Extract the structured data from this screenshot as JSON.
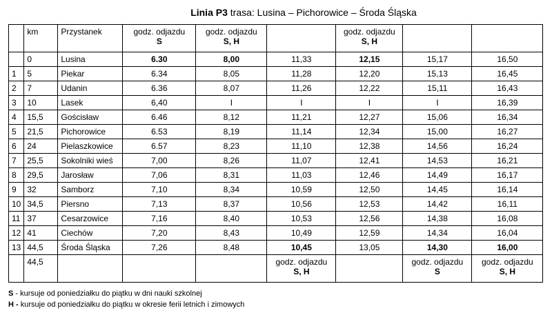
{
  "header": {
    "title_bold": "Linia P3",
    "title_rest": " trasa: Lusina – Pichorowice – Środa Śląska"
  },
  "table": {
    "header": [
      null,
      "km",
      "Przystanek",
      {
        "line1": "godz. odjazdu",
        "line2": "S"
      },
      {
        "line1": "godz. odjazdu",
        "line2": "S, H"
      },
      null,
      {
        "line1": "godz. odjazdu",
        "line2": "S, H"
      },
      null,
      null
    ],
    "rows": [
      [
        null,
        "0",
        "Lusina",
        "6.30",
        "8,00",
        "11,33",
        "12,15",
        "15,17",
        "16,50"
      ],
      [
        "1",
        "5",
        "Piekar",
        "6.34",
        "8,05",
        "11,28",
        "12,20",
        "15,13",
        "16,45"
      ],
      [
        "2",
        "7",
        "Udanin",
        "6.36",
        "8,07",
        "11,26",
        "12,22",
        "15,11",
        "16,43"
      ],
      [
        "3",
        "10",
        "Lasek",
        "6,40",
        "I",
        "I",
        "I",
        "I",
        "16,39"
      ],
      [
        "4",
        "15,5",
        "Gościsław",
        "6.46",
        "8,12",
        "11,21",
        "12,27",
        "15,06",
        "16,34"
      ],
      [
        "5",
        "21,5",
        "Pichorowice",
        "6.53",
        "8,19",
        "11,14",
        "12,34",
        "15,00",
        "16,27"
      ],
      [
        "6",
        "24",
        "Pielaszkowice",
        "6.57",
        "8,23",
        "11,10",
        "12,38",
        "14,56",
        "16,24"
      ],
      [
        "7",
        "25,5",
        "Sokolniki wieś",
        "7,00",
        "8,26",
        "11,07",
        "12,41",
        "14,53",
        "16,21"
      ],
      [
        "8",
        "29,5",
        "Jarosław",
        "7,06",
        "8,31",
        "11,03",
        "12,46",
        "14,49",
        "16,17"
      ],
      [
        "9",
        "32",
        "Samborz",
        "7,10",
        "8,34",
        "10,59",
        "12,50",
        "14,45",
        "16,14"
      ],
      [
        "10",
        "34,5",
        "Piersno",
        "7,13",
        "8,37",
        "10,56",
        "12,53",
        "14,42",
        "16,11"
      ],
      [
        "11",
        "37",
        "Cesarzowice",
        "7,16",
        "8,40",
        "10,53",
        "12,56",
        "14,38",
        "16,08"
      ],
      [
        "12",
        "41",
        "Ciechów",
        "7,20",
        "8,43",
        "10,49",
        "12,59",
        "14,34",
        "16,04"
      ],
      [
        "13",
        "44,5",
        "Środa Śląska",
        "7,26",
        "8,48",
        "10,45",
        "13,05",
        "14,30",
        "16,00"
      ]
    ],
    "footer": [
      null,
      "44,5",
      null,
      null,
      null,
      {
        "line1": "godz. odjazdu",
        "line2": "S, H"
      },
      null,
      {
        "line1": "godz. odjazdu",
        "line2": "S"
      },
      {
        "line1": "godz. odjazdu",
        "line2": "S, H"
      }
    ]
  },
  "notes": [
    {
      "key": "S",
      "text": " - kursuje od poniedziałku do piątku w dni nauki szkolnej"
    },
    {
      "key": "H -",
      "text": " kursuje od poniedziałku do piątku w okresie ferii letnich i zimowych"
    }
  ]
}
